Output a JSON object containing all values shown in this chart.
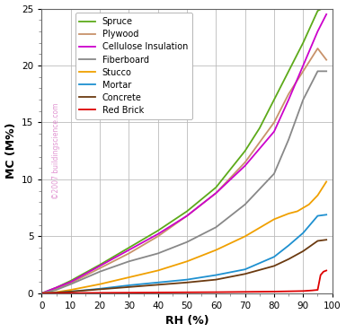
{
  "xlabel": "RH (%)",
  "ylabel": "MC (M%)",
  "xlim": [
    0,
    100
  ],
  "ylim": [
    0,
    25
  ],
  "xticks": [
    0,
    10,
    20,
    30,
    40,
    50,
    60,
    70,
    80,
    90,
    100
  ],
  "yticks": [
    0,
    5,
    10,
    15,
    20,
    25
  ],
  "background_color": "#ffffff",
  "watermark": "©2007 buildingscience.com",
  "series": [
    {
      "name": "Spruce",
      "color": "#5daa1a",
      "rh": [
        0,
        5,
        10,
        20,
        30,
        40,
        50,
        60,
        70,
        75,
        80,
        85,
        90,
        95,
        98
      ],
      "mc": [
        0,
        0.5,
        1.1,
        2.5,
        4.0,
        5.5,
        7.2,
        9.3,
        12.5,
        14.5,
        17.0,
        19.5,
        22.0,
        24.8,
        25.2
      ]
    },
    {
      "name": "Plywood",
      "color": "#c8926a",
      "rh": [
        0,
        5,
        10,
        20,
        30,
        40,
        50,
        60,
        70,
        80,
        85,
        90,
        95,
        98
      ],
      "mc": [
        0,
        0.4,
        0.9,
        2.2,
        3.5,
        5.0,
        6.8,
        8.8,
        11.5,
        15.0,
        17.5,
        19.5,
        21.5,
        20.5
      ]
    },
    {
      "name": "Cellulose Insulation",
      "color": "#cc00cc",
      "rh": [
        0,
        5,
        10,
        20,
        30,
        40,
        50,
        60,
        70,
        80,
        85,
        90,
        95,
        98
      ],
      "mc": [
        0,
        0.5,
        1.0,
        2.4,
        3.8,
        5.2,
        6.8,
        8.8,
        11.2,
        14.2,
        17.0,
        20.0,
        23.0,
        24.5
      ]
    },
    {
      "name": "Fiberboard",
      "color": "#888888",
      "rh": [
        0,
        5,
        10,
        20,
        30,
        40,
        50,
        60,
        70,
        80,
        85,
        90,
        95,
        98
      ],
      "mc": [
        0,
        0.3,
        0.8,
        1.9,
        2.8,
        3.5,
        4.5,
        5.8,
        7.8,
        10.5,
        13.5,
        17.0,
        19.5,
        19.5
      ]
    },
    {
      "name": "Stucco",
      "color": "#f0a000",
      "rh": [
        0,
        5,
        10,
        20,
        30,
        40,
        50,
        60,
        70,
        80,
        85,
        88,
        90,
        92,
        95,
        98
      ],
      "mc": [
        0,
        0.1,
        0.3,
        0.8,
        1.4,
        2.0,
        2.8,
        3.8,
        5.0,
        6.5,
        7.0,
        7.2,
        7.5,
        7.8,
        8.6,
        9.8
      ]
    },
    {
      "name": "Mortar",
      "color": "#1e90d0",
      "rh": [
        0,
        5,
        10,
        20,
        30,
        40,
        50,
        60,
        70,
        80,
        85,
        90,
        95,
        98
      ],
      "mc": [
        0,
        0.05,
        0.15,
        0.4,
        0.7,
        0.95,
        1.2,
        1.6,
        2.1,
        3.2,
        4.2,
        5.3,
        6.8,
        6.9
      ]
    },
    {
      "name": "Concrete",
      "color": "#6b3a10",
      "rh": [
        0,
        5,
        10,
        20,
        30,
        40,
        50,
        60,
        70,
        80,
        85,
        90,
        95,
        98
      ],
      "mc": [
        0,
        0.05,
        0.15,
        0.35,
        0.55,
        0.75,
        0.95,
        1.2,
        1.7,
        2.4,
        3.0,
        3.7,
        4.6,
        4.7
      ]
    },
    {
      "name": "Red Brick",
      "color": "#dd0000",
      "rh": [
        0,
        10,
        20,
        40,
        60,
        80,
        90,
        93,
        95,
        96,
        97,
        98
      ],
      "mc": [
        0,
        0.02,
        0.04,
        0.07,
        0.1,
        0.15,
        0.2,
        0.25,
        0.3,
        1.6,
        1.9,
        2.0
      ]
    }
  ]
}
